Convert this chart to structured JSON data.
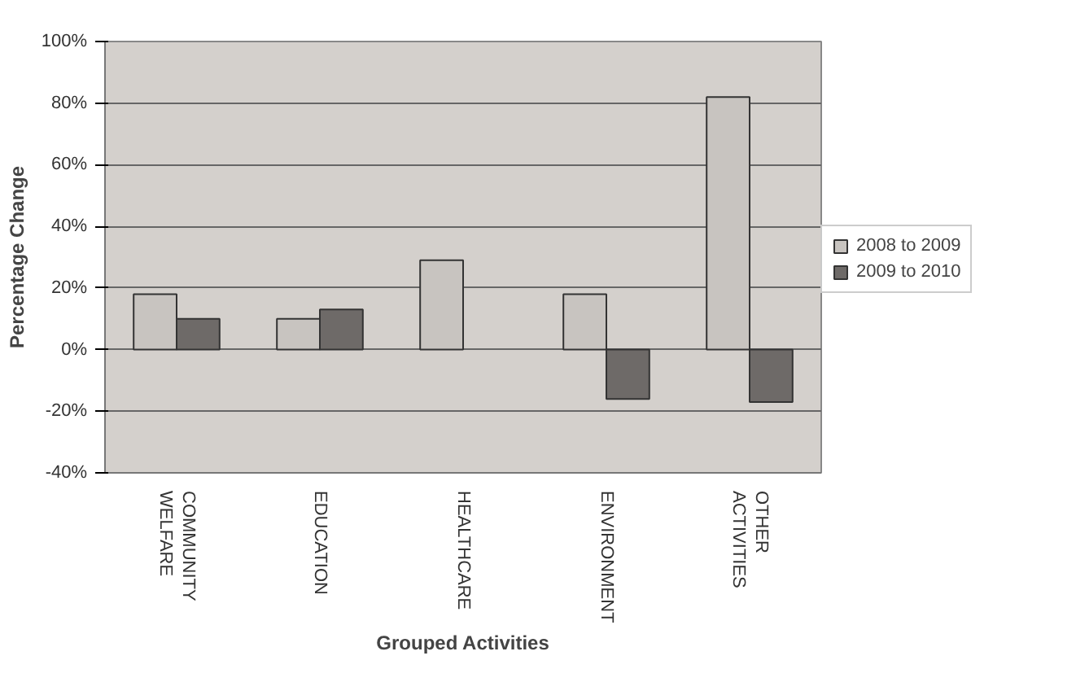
{
  "chart_data": {
    "type": "bar",
    "xlabel": "Grouped Activities",
    "ylabel": "Percentage Change",
    "categories": [
      "COMMUNITY WELFARE",
      "EDUCATION",
      "HEALTHCARE",
      "ENVIRONMENT",
      "OTHER ACTIVITIES"
    ],
    "series": [
      {
        "name": "2008 to 2009",
        "color": "#c8c4c0",
        "values": [
          18,
          10,
          29,
          18,
          82
        ]
      },
      {
        "name": "2009 to 2010",
        "color": "#6e6a68",
        "values": [
          10,
          13,
          null,
          -16,
          -17
        ]
      }
    ],
    "ylim": [
      -40,
      100
    ],
    "yticks": [
      {
        "value": -40,
        "label": "-40%"
      },
      {
        "value": -20,
        "label": "-20%"
      },
      {
        "value": 0,
        "label": "0%"
      },
      {
        "value": 20,
        "label": "20%"
      },
      {
        "value": 40,
        "label": "40%"
      },
      {
        "value": 60,
        "label": "60%"
      },
      {
        "value": 80,
        "label": "80%"
      },
      {
        "value": 100,
        "label": "100%"
      }
    ],
    "grid": "y",
    "legend": "right"
  }
}
